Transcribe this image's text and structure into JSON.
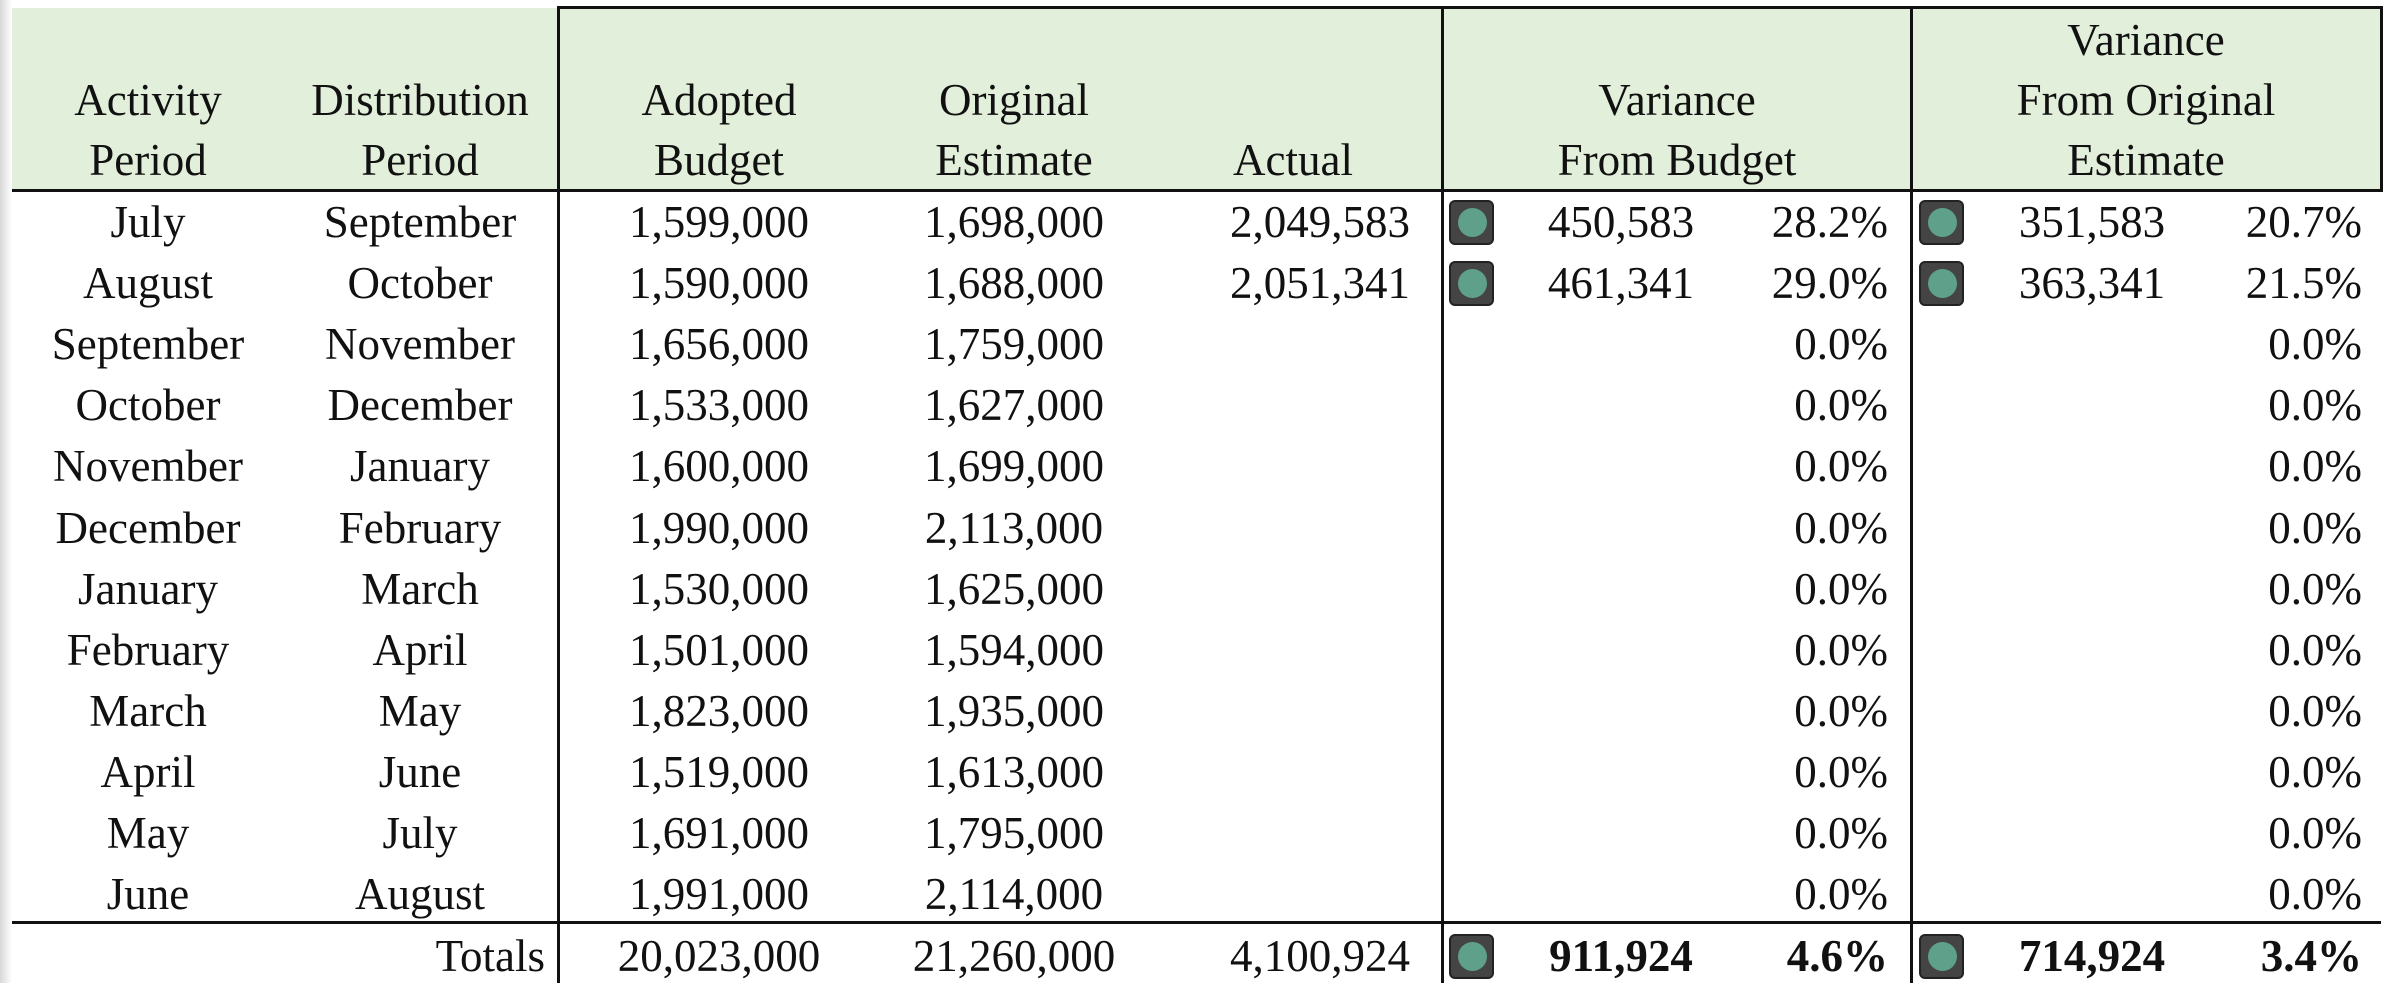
{
  "table": {
    "headers": {
      "activity": [
        "Activity",
        "Period"
      ],
      "distribution": [
        "Distribution",
        "Period"
      ],
      "adopted": [
        "Adopted",
        "Budget"
      ],
      "original": [
        "Original",
        "Estimate"
      ],
      "actual": [
        "Actual"
      ],
      "var_budget": [
        "Variance",
        "From Budget"
      ],
      "var_orig": [
        "Variance",
        "From Original",
        "Estimate"
      ]
    },
    "rows": [
      {
        "activity": "July",
        "distribution": "September",
        "adopted": "1,599,000",
        "original": "1,698,000",
        "actual": "2,049,583",
        "var_budget": "450,583",
        "var_budget_pct": "28.2%",
        "var_orig": "351,583",
        "var_orig_pct": "20.7%"
      },
      {
        "activity": "August",
        "distribution": "October",
        "adopted": "1,590,000",
        "original": "1,688,000",
        "actual": "2,051,341",
        "var_budget": "461,341",
        "var_budget_pct": "29.0%",
        "var_orig": "363,341",
        "var_orig_pct": "21.5%"
      },
      {
        "activity": "September",
        "distribution": "November",
        "adopted": "1,656,000",
        "original": "1,759,000",
        "var_budget_pct": "0.0%",
        "var_orig_pct": "0.0%"
      },
      {
        "activity": "October",
        "distribution": "December",
        "adopted": "1,533,000",
        "original": "1,627,000",
        "var_budget_pct": "0.0%",
        "var_orig_pct": "0.0%"
      },
      {
        "activity": "November",
        "distribution": "January",
        "adopted": "1,600,000",
        "original": "1,699,000",
        "var_budget_pct": "0.0%",
        "var_orig_pct": "0.0%"
      },
      {
        "activity": "December",
        "distribution": "February",
        "adopted": "1,990,000",
        "original": "2,113,000",
        "var_budget_pct": "0.0%",
        "var_orig_pct": "0.0%"
      },
      {
        "activity": "January",
        "distribution": "March",
        "adopted": "1,530,000",
        "original": "1,625,000",
        "var_budget_pct": "0.0%",
        "var_orig_pct": "0.0%"
      },
      {
        "activity": "February",
        "distribution": "April",
        "adopted": "1,501,000",
        "original": "1,594,000",
        "var_budget_pct": "0.0%",
        "var_orig_pct": "0.0%"
      },
      {
        "activity": "March",
        "distribution": "May",
        "adopted": "1,823,000",
        "original": "1,935,000",
        "var_budget_pct": "0.0%",
        "var_orig_pct": "0.0%"
      },
      {
        "activity": "April",
        "distribution": "June",
        "adopted": "1,519,000",
        "original": "1,613,000",
        "var_budget_pct": "0.0%",
        "var_orig_pct": "0.0%"
      },
      {
        "activity": "May",
        "distribution": "July",
        "adopted": "1,691,000",
        "original": "1,795,000",
        "var_budget_pct": "0.0%",
        "var_orig_pct": "0.0%"
      },
      {
        "activity": "June",
        "distribution": "August",
        "adopted": "1,991,000",
        "original": "2,114,000",
        "var_budget_pct": "0.0%",
        "var_orig_pct": "0.0%"
      }
    ],
    "totals": {
      "label": "Totals",
      "adopted": "20,023,000",
      "original": "21,260,000",
      "actual": "4,100,924",
      "var_budget": "911,924",
      "var_budget_pct": "4.6%",
      "var_orig": "714,924",
      "var_orig_pct": "3.4%"
    }
  }
}
